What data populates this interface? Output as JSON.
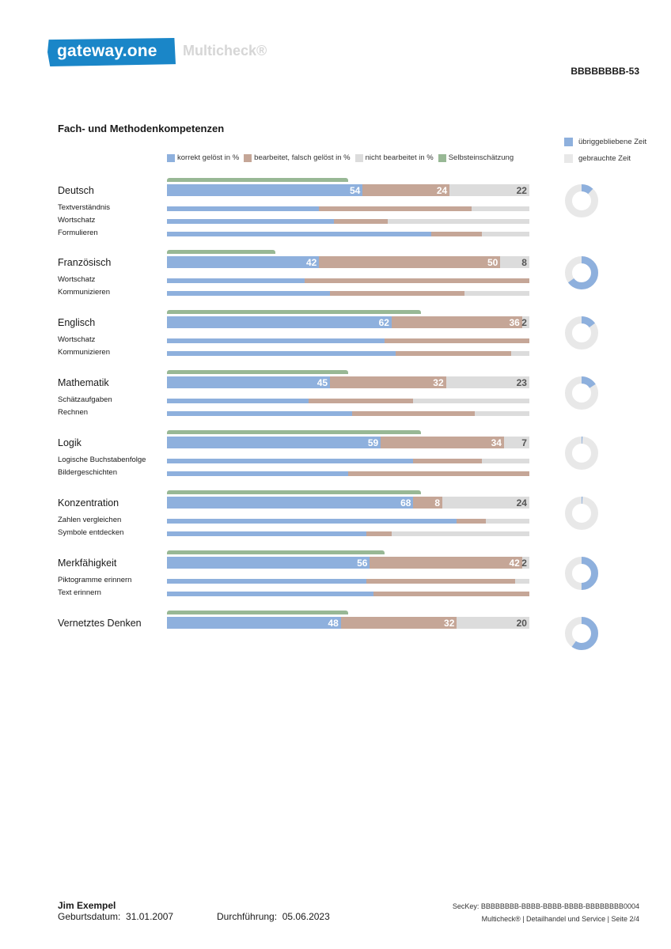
{
  "header": {
    "logo_text": "gateway.one",
    "product": "Multicheck®",
    "doc_id": "BBBBBBBB-53"
  },
  "section_title": "Fach- und Methodenkompetenzen",
  "colors": {
    "correct": "#8eb0dd",
    "wrong": "#c5a697",
    "not_done": "#dcdcdc",
    "self": "#98b895",
    "time_left": "#8eb0dd",
    "time_used": "#e8e8e8"
  },
  "chart_data": {
    "type": "bar",
    "orientation": "horizontal-stacked",
    "legend": {
      "correct": "korrekt gelöst in %",
      "wrong": "bearbeitet, falsch gelöst in %",
      "not_done": "nicht bearbeitet in %",
      "self": "Selbsteinschätzung",
      "time_left": "übriggebliebene Zeit",
      "time_used": "gebrauchte Zeit"
    },
    "subjects": [
      {
        "name": "Deutsch",
        "correct": 54,
        "wrong": 24,
        "not_done": 22,
        "self": 50,
        "time_left": 12,
        "subs": [
          {
            "name": "Textverständnis",
            "correct": 42,
            "wrong": 42,
            "not_done": 16
          },
          {
            "name": "Wortschatz",
            "correct": 46,
            "wrong": 15,
            "not_done": 39
          },
          {
            "name": "Formulieren",
            "correct": 73,
            "wrong": 14,
            "not_done": 13
          }
        ]
      },
      {
        "name": "Französisch",
        "correct": 42,
        "wrong": 50,
        "not_done": 8,
        "self": 30,
        "time_left": 65,
        "subs": [
          {
            "name": "Wortschatz",
            "correct": 38,
            "wrong": 62,
            "not_done": 0
          },
          {
            "name": "Kommunizieren",
            "correct": 45,
            "wrong": 37,
            "not_done": 18
          }
        ]
      },
      {
        "name": "Englisch",
        "correct": 62,
        "wrong": 36,
        "not_done": 2,
        "self": 70,
        "time_left": 15,
        "subs": [
          {
            "name": "Wortschatz",
            "correct": 60,
            "wrong": 40,
            "not_done": 0
          },
          {
            "name": "Kommunizieren",
            "correct": 63,
            "wrong": 32,
            "not_done": 5
          }
        ]
      },
      {
        "name": "Mathematik",
        "correct": 45,
        "wrong": 32,
        "not_done": 23,
        "self": 50,
        "time_left": 16,
        "subs": [
          {
            "name": "Schätzaufgaben",
            "correct": 39,
            "wrong": 29,
            "not_done": 32
          },
          {
            "name": "Rechnen",
            "correct": 51,
            "wrong": 34,
            "not_done": 15
          }
        ]
      },
      {
        "name": "Logik",
        "correct": 59,
        "wrong": 34,
        "not_done": 7,
        "self": 70,
        "time_left": 1,
        "subs": [
          {
            "name": "Logische Buchstabenfolge",
            "correct": 68,
            "wrong": 19,
            "not_done": 13
          },
          {
            "name": "Bildergeschichten",
            "correct": 50,
            "wrong": 50,
            "not_done": 0
          }
        ]
      },
      {
        "name": "Konzentration",
        "correct": 68,
        "wrong": 8,
        "not_done": 24,
        "self": 70,
        "time_left": 1,
        "subs": [
          {
            "name": "Zahlen vergleichen",
            "correct": 80,
            "wrong": 8,
            "not_done": 12
          },
          {
            "name": "Symbole entdecken",
            "correct": 55,
            "wrong": 7,
            "not_done": 38
          }
        ]
      },
      {
        "name": "Merkfähigkeit",
        "correct": 56,
        "wrong": 42,
        "not_done": 2,
        "self": 60,
        "time_left": 50,
        "subs": [
          {
            "name": "Piktogramme erinnern",
            "correct": 55,
            "wrong": 41,
            "not_done": 4
          },
          {
            "name": "Text erinnern",
            "correct": 57,
            "wrong": 43,
            "not_done": 0
          }
        ]
      },
      {
        "name": "Vernetztes Denken",
        "correct": 48,
        "wrong": 32,
        "not_done": 20,
        "self": 50,
        "time_left": 60,
        "subs": []
      }
    ]
  },
  "footer": {
    "name": "Jim Exempel",
    "birth_label": "Geburtsdatum:",
    "birth_value": "31.01.2007",
    "exec_label": "Durchführung:",
    "exec_value": "05.06.2023",
    "seckey": "SecKey:  BBBBBBBB-BBBB-BBBB-BBBB-BBBBBBBB0004",
    "page_info": "Multicheck®  |  Detailhandel und Service  |  Seite 2/4"
  }
}
